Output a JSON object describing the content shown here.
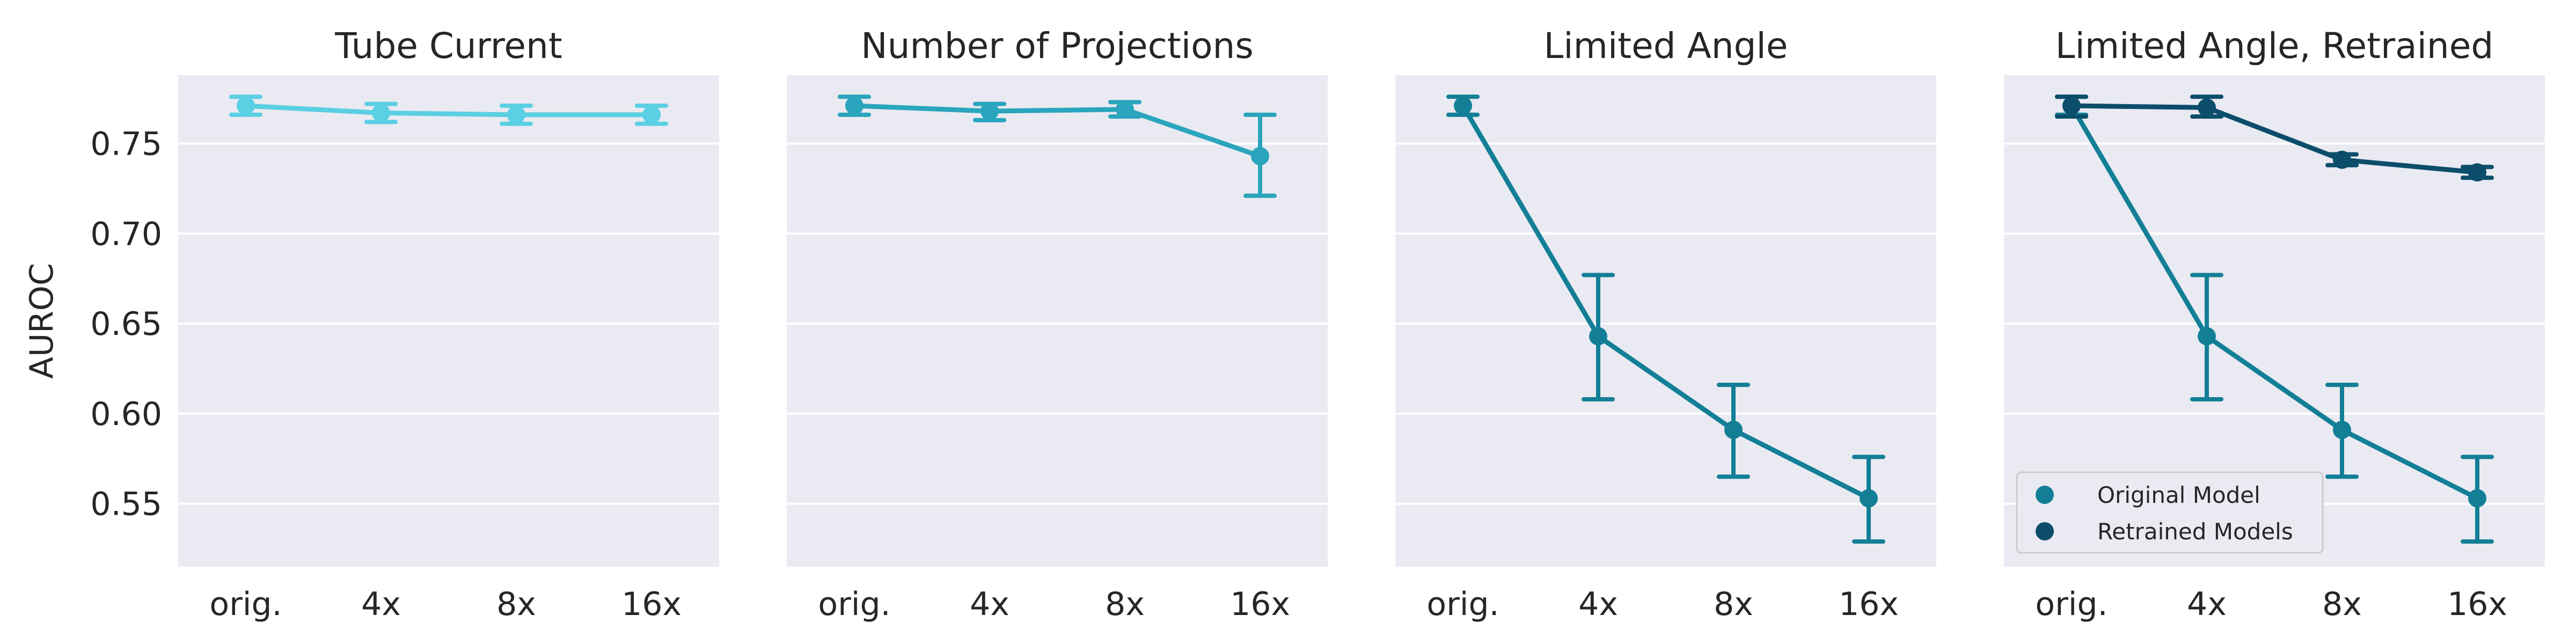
{
  "chart_data": [
    {
      "type": "line",
      "title": "Tube Current",
      "ylabel": "AUROC",
      "categories": [
        "orig.",
        "4x",
        "8x",
        "16x"
      ],
      "ylim": [
        0.515,
        0.788
      ],
      "yticks": [
        "0.75",
        "0.70",
        "0.65",
        "0.60",
        "0.55"
      ],
      "grid": true,
      "series": [
        {
          "color": "#5bcfe3",
          "values": [
            0.771,
            0.767,
            0.766,
            0.766
          ],
          "err_low": [
            0.766,
            0.762,
            0.761,
            0.761
          ],
          "err_high": [
            0.776,
            0.772,
            0.771,
            0.771
          ]
        }
      ]
    },
    {
      "type": "line",
      "title": "Number of Projections",
      "categories": [
        "orig.",
        "4x",
        "8x",
        "16x"
      ],
      "ylim": [
        0.515,
        0.788
      ],
      "grid": true,
      "series": [
        {
          "color": "#2aa5bd",
          "values": [
            0.771,
            0.768,
            0.769,
            0.743
          ],
          "err_low": [
            0.766,
            0.763,
            0.765,
            0.721
          ],
          "err_high": [
            0.776,
            0.772,
            0.773,
            0.766
          ]
        }
      ]
    },
    {
      "type": "line",
      "title": "Limited Angle",
      "categories": [
        "orig.",
        "4x",
        "8x",
        "16x"
      ],
      "ylim": [
        0.515,
        0.788
      ],
      "grid": true,
      "series": [
        {
          "color": "#137f97",
          "values": [
            0.771,
            0.643,
            0.591,
            0.553
          ],
          "err_low": [
            0.766,
            0.608,
            0.565,
            0.529
          ],
          "err_high": [
            0.776,
            0.677,
            0.616,
            0.576
          ]
        }
      ]
    },
    {
      "type": "line",
      "title": "Limited Angle, Retrained",
      "categories": [
        "orig.",
        "4x",
        "8x",
        "16x"
      ],
      "ylim": [
        0.515,
        0.788
      ],
      "grid": true,
      "legend": {
        "position": "lower-left"
      },
      "series": [
        {
          "name": "Original Model",
          "color": "#137f97",
          "values": [
            0.771,
            0.643,
            0.591,
            0.553
          ],
          "err_low": [
            0.766,
            0.608,
            0.565,
            0.529
          ],
          "err_high": [
            0.776,
            0.677,
            0.616,
            0.576
          ]
        },
        {
          "name": "Retrained Models",
          "color": "#0b4d6a",
          "values": [
            0.771,
            0.77,
            0.741,
            0.734
          ],
          "err_low": [
            0.765,
            0.765,
            0.738,
            0.731
          ],
          "err_high": [
            0.776,
            0.776,
            0.744,
            0.737
          ]
        }
      ]
    }
  ]
}
